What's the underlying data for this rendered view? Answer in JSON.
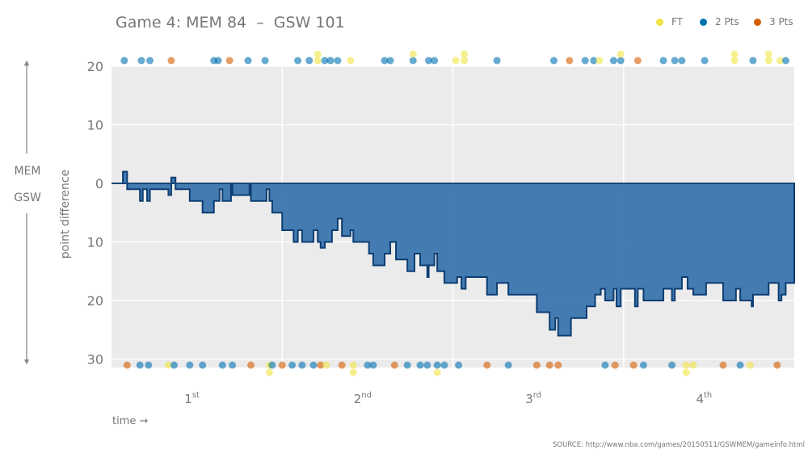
{
  "chart_data": {
    "type": "area",
    "title": "Game 4: MEM 84  –  GSW 101",
    "xlabel": "time →",
    "ylabel": "point difference",
    "side_labels": {
      "top": "MEM",
      "bottom": "GSW"
    },
    "xlim": [
      0,
      48
    ],
    "ylim": [
      -30,
      20
    ],
    "y_ticks": [
      {
        "value": 20,
        "label": "20"
      },
      {
        "value": 10,
        "label": "10"
      },
      {
        "value": 0,
        "label": "0"
      },
      {
        "value": -10,
        "label": "10"
      },
      {
        "value": -20,
        "label": "20"
      },
      {
        "value": -30,
        "label": "30"
      }
    ],
    "quarters": [
      {
        "label": "1",
        "sup": "st"
      },
      {
        "label": "2",
        "sup": "nd"
      },
      {
        "label": "3",
        "sup": "rd"
      },
      {
        "label": "4",
        "sup": "th"
      }
    ],
    "grid": true,
    "legend_position": "top-right",
    "legend": [
      {
        "key": "FT",
        "label": "FT",
        "color": "#f0e442"
      },
      {
        "key": "2",
        "label": "2 Pts",
        "color": "#0072b2"
      },
      {
        "key": "3",
        "label": "3 Pts",
        "color": "#d55e00"
      }
    ],
    "area_color": "#3b76ae",
    "line_color": "#0d3d72",
    "point_difference_steps": [
      [
        0,
        0
      ],
      [
        0.8,
        2
      ],
      [
        1.1,
        -1
      ],
      [
        2.0,
        -3
      ],
      [
        2.2,
        -1
      ],
      [
        2.5,
        -3
      ],
      [
        2.7,
        -1
      ],
      [
        4.0,
        -2
      ],
      [
        4.2,
        1
      ],
      [
        4.5,
        -1
      ],
      [
        5.5,
        -3
      ],
      [
        6.4,
        -5
      ],
      [
        7.2,
        -3
      ],
      [
        7.6,
        -1
      ],
      [
        7.8,
        -3
      ],
      [
        8.4,
        0
      ],
      [
        8.5,
        -2
      ],
      [
        9.7,
        0
      ],
      [
        9.8,
        -3
      ],
      [
        10.9,
        -1
      ],
      [
        11.1,
        -3
      ],
      [
        11.3,
        -5
      ],
      [
        12.0,
        -8
      ],
      [
        12.8,
        -10
      ],
      [
        13.1,
        -8
      ],
      [
        13.4,
        -10
      ],
      [
        14.2,
        -8
      ],
      [
        14.5,
        -10
      ],
      [
        14.7,
        -11
      ],
      [
        15.0,
        -10
      ],
      [
        15.5,
        -8
      ],
      [
        15.9,
        -6
      ],
      [
        16.2,
        -9
      ],
      [
        16.8,
        -8
      ],
      [
        17.0,
        -10
      ],
      [
        18.1,
        -12
      ],
      [
        18.4,
        -14
      ],
      [
        19.2,
        -12
      ],
      [
        19.6,
        -10
      ],
      [
        20.0,
        -13
      ],
      [
        20.8,
        -15
      ],
      [
        21.3,
        -12
      ],
      [
        21.7,
        -14
      ],
      [
        22.2,
        -16
      ],
      [
        22.3,
        -14
      ],
      [
        22.7,
        -12
      ],
      [
        22.9,
        -15
      ],
      [
        23.4,
        -17
      ],
      [
        24.3,
        -16
      ],
      [
        24.6,
        -18
      ],
      [
        24.9,
        -16
      ],
      [
        26.4,
        -19
      ],
      [
        27.1,
        -17
      ],
      [
        27.9,
        -19
      ],
      [
        29.9,
        -22
      ],
      [
        30.8,
        -25
      ],
      [
        31.2,
        -23
      ],
      [
        31.4,
        -26
      ],
      [
        32.3,
        -23
      ],
      [
        33.4,
        -21
      ],
      [
        34.0,
        -19
      ],
      [
        34.4,
        -18
      ],
      [
        34.7,
        -20
      ],
      [
        35.3,
        -18
      ],
      [
        35.5,
        -21
      ],
      [
        35.8,
        -18
      ],
      [
        36.8,
        -21
      ],
      [
        37.0,
        -18
      ],
      [
        37.4,
        -20
      ],
      [
        38.8,
        -18
      ],
      [
        39.4,
        -20
      ],
      [
        39.6,
        -18
      ],
      [
        40.1,
        -16
      ],
      [
        40.5,
        -18
      ],
      [
        40.9,
        -19
      ],
      [
        41.8,
        -17
      ],
      [
        43.0,
        -20
      ],
      [
        43.9,
        -18
      ],
      [
        44.2,
        -20
      ],
      [
        45.0,
        -21
      ],
      [
        45.1,
        -19
      ],
      [
        46.2,
        -17
      ],
      [
        46.9,
        -20
      ],
      [
        47.1,
        -19
      ],
      [
        47.4,
        -17
      ],
      [
        48,
        -17
      ]
    ],
    "scoring_events": {
      "MEM": [
        [
          0.9,
          "2"
        ],
        [
          2.1,
          "2"
        ],
        [
          2.7,
          "2"
        ],
        [
          4.2,
          "3"
        ],
        [
          7.2,
          "2"
        ],
        [
          7.5,
          "2"
        ],
        [
          8.3,
          "3"
        ],
        [
          9.6,
          "2"
        ],
        [
          10.8,
          "2"
        ],
        [
          13.1,
          "2"
        ],
        [
          13.9,
          "2"
        ],
        [
          14.5,
          "FT"
        ],
        [
          14.5,
          "FT"
        ],
        [
          15.0,
          "2"
        ],
        [
          15.4,
          "2"
        ],
        [
          15.9,
          "2"
        ],
        [
          16.8,
          "FT"
        ],
        [
          19.2,
          "2"
        ],
        [
          19.6,
          "2"
        ],
        [
          21.2,
          "2"
        ],
        [
          21.2,
          "FT"
        ],
        [
          22.3,
          "2"
        ],
        [
          22.7,
          "2"
        ],
        [
          24.2,
          "FT"
        ],
        [
          24.8,
          "FT"
        ],
        [
          24.8,
          "FT"
        ],
        [
          27.1,
          "2"
        ],
        [
          31.1,
          "2"
        ],
        [
          32.2,
          "3"
        ],
        [
          33.3,
          "2"
        ],
        [
          33.9,
          "2"
        ],
        [
          34.3,
          "FT"
        ],
        [
          35.3,
          "2"
        ],
        [
          35.8,
          "2"
        ],
        [
          35.8,
          "FT"
        ],
        [
          37.0,
          "3"
        ],
        [
          38.8,
          "2"
        ],
        [
          39.6,
          "2"
        ],
        [
          40.1,
          "2"
        ],
        [
          41.7,
          "2"
        ],
        [
          43.8,
          "FT"
        ],
        [
          43.8,
          "FT"
        ],
        [
          45.1,
          "2"
        ],
        [
          46.2,
          "FT"
        ],
        [
          46.2,
          "FT"
        ],
        [
          47.0,
          "FT"
        ],
        [
          47.4,
          "2"
        ]
      ],
      "GSW": [
        [
          1.1,
          "3"
        ],
        [
          2.0,
          "2"
        ],
        [
          2.6,
          "2"
        ],
        [
          4.0,
          "FT"
        ],
        [
          4.4,
          "2"
        ],
        [
          5.5,
          "2"
        ],
        [
          6.4,
          "2"
        ],
        [
          7.8,
          "2"
        ],
        [
          8.5,
          "2"
        ],
        [
          9.8,
          "3"
        ],
        [
          11.1,
          "FT"
        ],
        [
          11.1,
          "FT"
        ],
        [
          11.3,
          "2"
        ],
        [
          12.0,
          "3"
        ],
        [
          12.7,
          "2"
        ],
        [
          13.4,
          "2"
        ],
        [
          14.2,
          "2"
        ],
        [
          14.7,
          "3"
        ],
        [
          15.1,
          "FT"
        ],
        [
          16.2,
          "3"
        ],
        [
          17.0,
          "FT"
        ],
        [
          17.0,
          "FT"
        ],
        [
          18.0,
          "2"
        ],
        [
          18.4,
          "2"
        ],
        [
          19.9,
          "3"
        ],
        [
          20.8,
          "2"
        ],
        [
          21.7,
          "2"
        ],
        [
          22.2,
          "2"
        ],
        [
          22.9,
          "2"
        ],
        [
          22.9,
          "FT"
        ],
        [
          23.4,
          "2"
        ],
        [
          24.4,
          "2"
        ],
        [
          26.4,
          "3"
        ],
        [
          27.9,
          "2"
        ],
        [
          29.9,
          "3"
        ],
        [
          30.8,
          "3"
        ],
        [
          31.4,
          "3"
        ],
        [
          34.7,
          "2"
        ],
        [
          35.4,
          "3"
        ],
        [
          36.7,
          "3"
        ],
        [
          37.4,
          "2"
        ],
        [
          39.4,
          "2"
        ],
        [
          40.4,
          "FT"
        ],
        [
          40.4,
          "FT"
        ],
        [
          40.9,
          "FT"
        ],
        [
          43.0,
          "3"
        ],
        [
          44.2,
          "2"
        ],
        [
          44.9,
          "FT"
        ],
        [
          46.8,
          "3"
        ]
      ]
    },
    "source": "SOURCE: http://www.nba.com/games/20150511/GSWMEM/gameinfo.html"
  }
}
